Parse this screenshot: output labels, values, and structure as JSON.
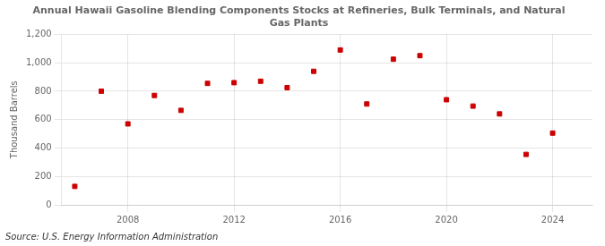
{
  "chart_data": {
    "type": "scatter",
    "title": "Annual Hawaii Gasoline Blending Components Stocks at Refineries, Bulk Terminals, and Natural\nGas Plants",
    "ylabel": "Thousand Barrels",
    "source": "Source: U.S. Energy Information Administration",
    "x": [
      2006,
      2007,
      2008,
      2009,
      2010,
      2011,
      2012,
      2013,
      2014,
      2015,
      2016,
      2017,
      2018,
      2019,
      2020,
      2021,
      2022,
      2023,
      2024
    ],
    "values": [
      130,
      800,
      570,
      770,
      665,
      855,
      860,
      870,
      825,
      940,
      1090,
      710,
      1025,
      1050,
      740,
      695,
      640,
      355,
      505
    ],
    "color": "#cc0000",
    "marker": "square",
    "xlim": [
      2005.5,
      2025.5
    ],
    "xticks": [
      2008,
      2012,
      2016,
      2020,
      2024
    ],
    "ylim": [
      0,
      1200
    ],
    "yticks": [
      0,
      200,
      400,
      600,
      800,
      {
        "value": 1000,
        "label": "1,000"
      },
      {
        "value": 1200,
        "label": "1,200"
      }
    ],
    "grid": true,
    "legend": false
  }
}
